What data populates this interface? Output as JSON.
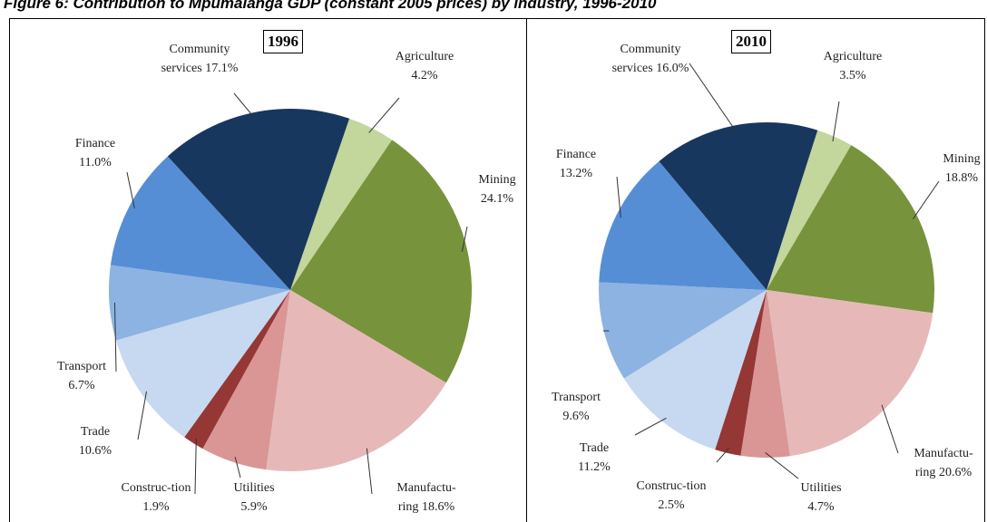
{
  "title": "Figure 6: Contribution to Mpumalanga GDP (constant 2005 prices) by industry, 1996-2010",
  "chart_data": [
    {
      "type": "pie",
      "title": "1996",
      "categories": [
        "Agriculture",
        "Mining",
        "Manufactu-ring",
        "Utilities",
        "Construc-tion",
        "Trade",
        "Transport",
        "Finance",
        "Community services"
      ],
      "values": [
        4.2,
        24.1,
        18.6,
        5.9,
        1.9,
        10.6,
        6.7,
        11.0,
        17.1
      ],
      "value_labels": [
        "4.2%",
        "24.1%",
        "18.6%",
        "5.9%",
        "1.9%",
        "10.6%",
        "6.7%",
        "11.0%",
        "17.1%"
      ],
      "colors": [
        "#c3d69b",
        "#77933c",
        "#e6b9b8",
        "#d99694",
        "#953735",
        "#c6d9f1",
        "#8db3e2",
        "#558ed5",
        "#17375e"
      ]
    },
    {
      "type": "pie",
      "title": "2010",
      "categories": [
        "Agriculture",
        "Mining",
        "Manufactu-ring",
        "Utilities",
        "Construc-tion",
        "Trade",
        "Transport",
        "Finance",
        "Community services"
      ],
      "values": [
        3.5,
        18.8,
        20.6,
        4.7,
        2.5,
        11.2,
        9.6,
        13.2,
        16.0
      ],
      "value_labels": [
        "3.5%",
        "18.8%",
        "20.6%",
        "4.7%",
        "2.5%",
        "11.2%",
        "9.6%",
        "13.2%",
        "16.0%"
      ],
      "colors": [
        "#c3d69b",
        "#77933c",
        "#e6b9b8",
        "#d99694",
        "#953735",
        "#c6d9f1",
        "#8db3e2",
        "#558ed5",
        "#17375e"
      ]
    }
  ]
}
